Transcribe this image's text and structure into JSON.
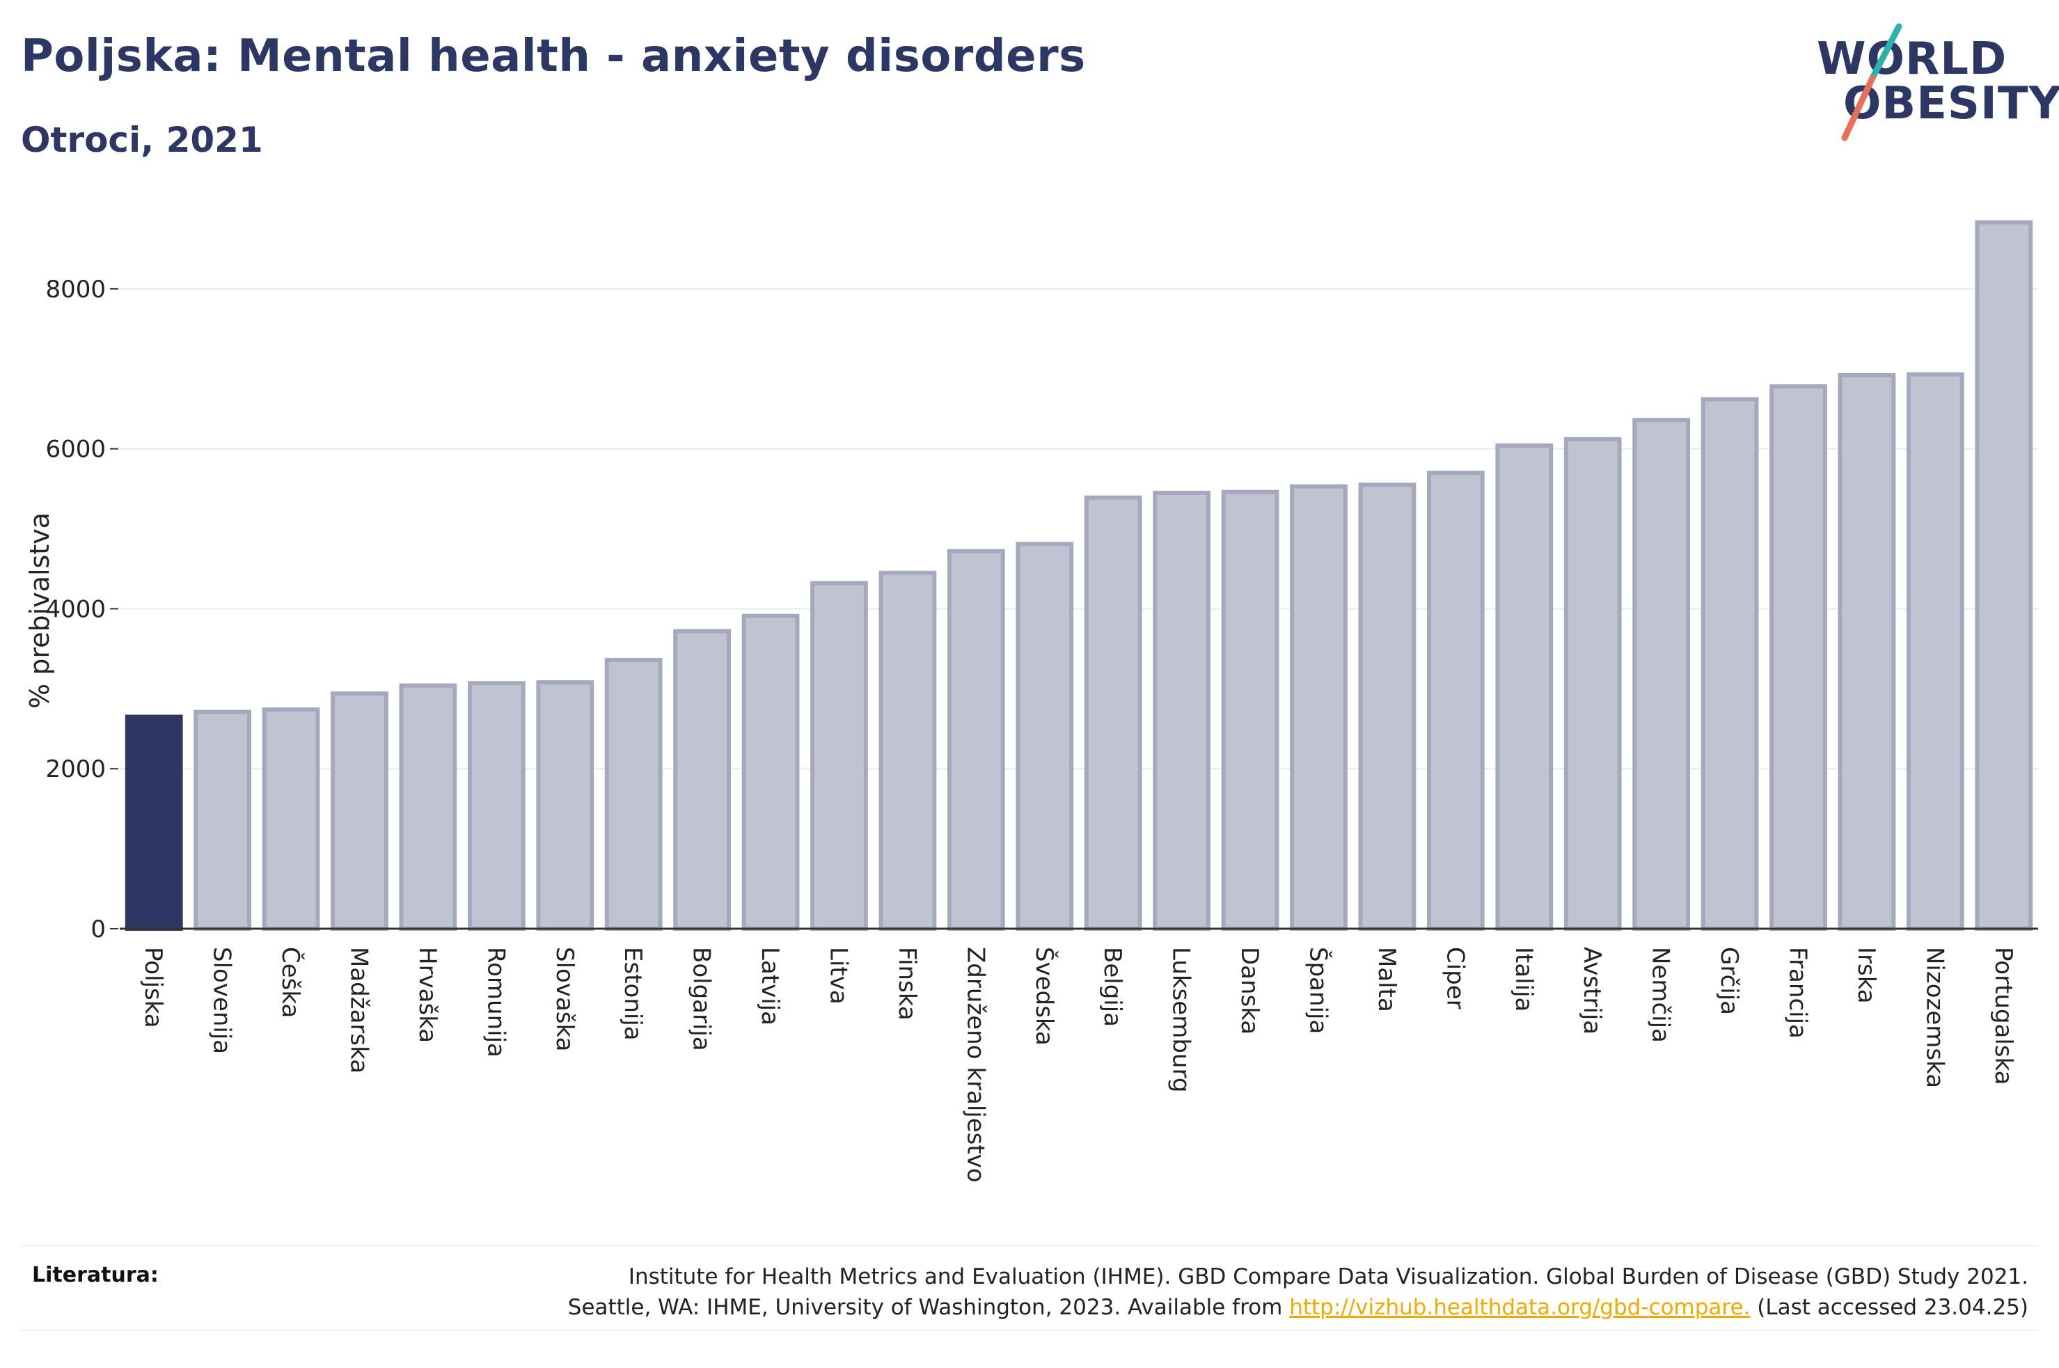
{
  "title": "Poljska: Mental health - anxiety disorders",
  "subtitle": "Otroci, 2021",
  "logo": {
    "line1": "WORLD",
    "line2": "OBESITY",
    "slash_colors": [
      "#2bb3ab",
      "#e8705a"
    ]
  },
  "colors": {
    "highlight": "#2d3763",
    "bar_fill": "#c0c3d0",
    "bar_stroke": "#a4a9bd",
    "text": "#2d3763",
    "link": "#f2a900"
  },
  "chart_data": {
    "type": "bar",
    "title": "",
    "ylabel": "% prebivalstva",
    "xlabel": "",
    "ylim": [
      0,
      9000
    ],
    "yticks": [
      0,
      2000,
      4000,
      6000,
      8000
    ],
    "grid": true,
    "highlight": "Poljska",
    "categories": [
      "Poljska",
      "Slovenija",
      "Češka",
      "Madžarska",
      "Hrvaška",
      "Romunija",
      "Slovaška",
      "Estonija",
      "Bolgarija",
      "Latvija",
      "Litva",
      "Finska",
      "Združeno kraljestvo",
      "Švedska",
      "Belgija",
      "Luksemburg",
      "Danska",
      "Španija",
      "Malta",
      "Ciper",
      "Italija",
      "Avstrija",
      "Nemčija",
      "Grčija",
      "Francija",
      "Irska",
      "Nizozemska",
      "Portugalska"
    ],
    "values": [
      2650,
      2710,
      2740,
      2940,
      3040,
      3070,
      3080,
      3360,
      3720,
      3910,
      4320,
      4450,
      4720,
      4810,
      5390,
      5450,
      5460,
      5530,
      5550,
      5700,
      6040,
      6120,
      6360,
      6620,
      6780,
      6920,
      6930,
      8830
    ]
  },
  "footer": {
    "label": "Literatura:",
    "line1": "Institute for Health Metrics and Evaluation (IHME). GBD Compare Data Visualization. Global Burden of Disease (GBD) Study 2021.",
    "line2_prefix": "Seattle, WA: IHME, University of Washington, 2023. Available from ",
    "link_text": "http://vizhub.healthdata.org/gbd-compare.",
    "line2_suffix": " (Last accessed 23.04.25)"
  }
}
